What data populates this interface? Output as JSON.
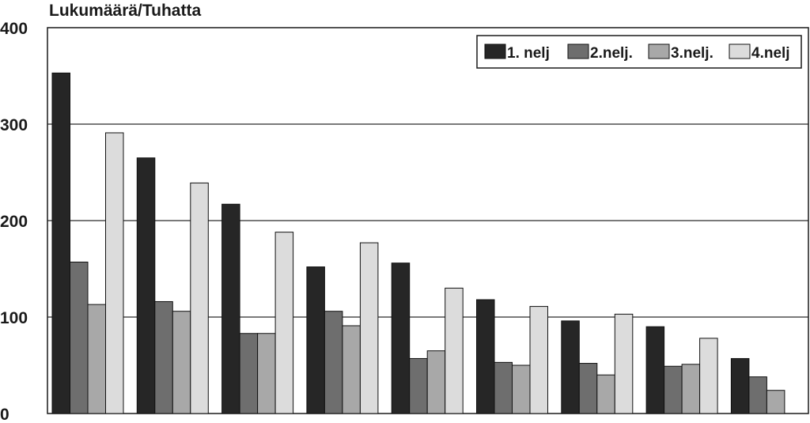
{
  "chart_data": {
    "type": "bar",
    "title": "",
    "unit_label": "Lukumäärä/Tuhatta",
    "xlabel": "",
    "ylabel": "Lukumäärä/Tuhatta",
    "ylim": [
      0,
      400
    ],
    "yticks": [
      "0",
      "100",
      "200",
      "300",
      "400"
    ],
    "grid": true,
    "legend_position": "top-right",
    "categories": [
      "",
      "",
      "",
      "",
      "",
      "",
      "",
      "",
      ""
    ],
    "series": [
      {
        "name": "1. nelj",
        "color": "#262626",
        "values": [
          353,
          265,
          217,
          152,
          156,
          118,
          96,
          90,
          57
        ]
      },
      {
        "name": "2.nelj.",
        "color": "#6e6e6e",
        "values": [
          157,
          116,
          83,
          106,
          57,
          53,
          52,
          49,
          38
        ]
      },
      {
        "name": "3.nelj.",
        "color": "#a8a8a8",
        "values": [
          113,
          106,
          83,
          91,
          65,
          50,
          40,
          51,
          24
        ]
      },
      {
        "name": "4.nelj",
        "color": "#dcdcdc",
        "values": [
          291,
          239,
          188,
          177,
          130,
          111,
          103,
          78,
          null
        ]
      }
    ]
  }
}
